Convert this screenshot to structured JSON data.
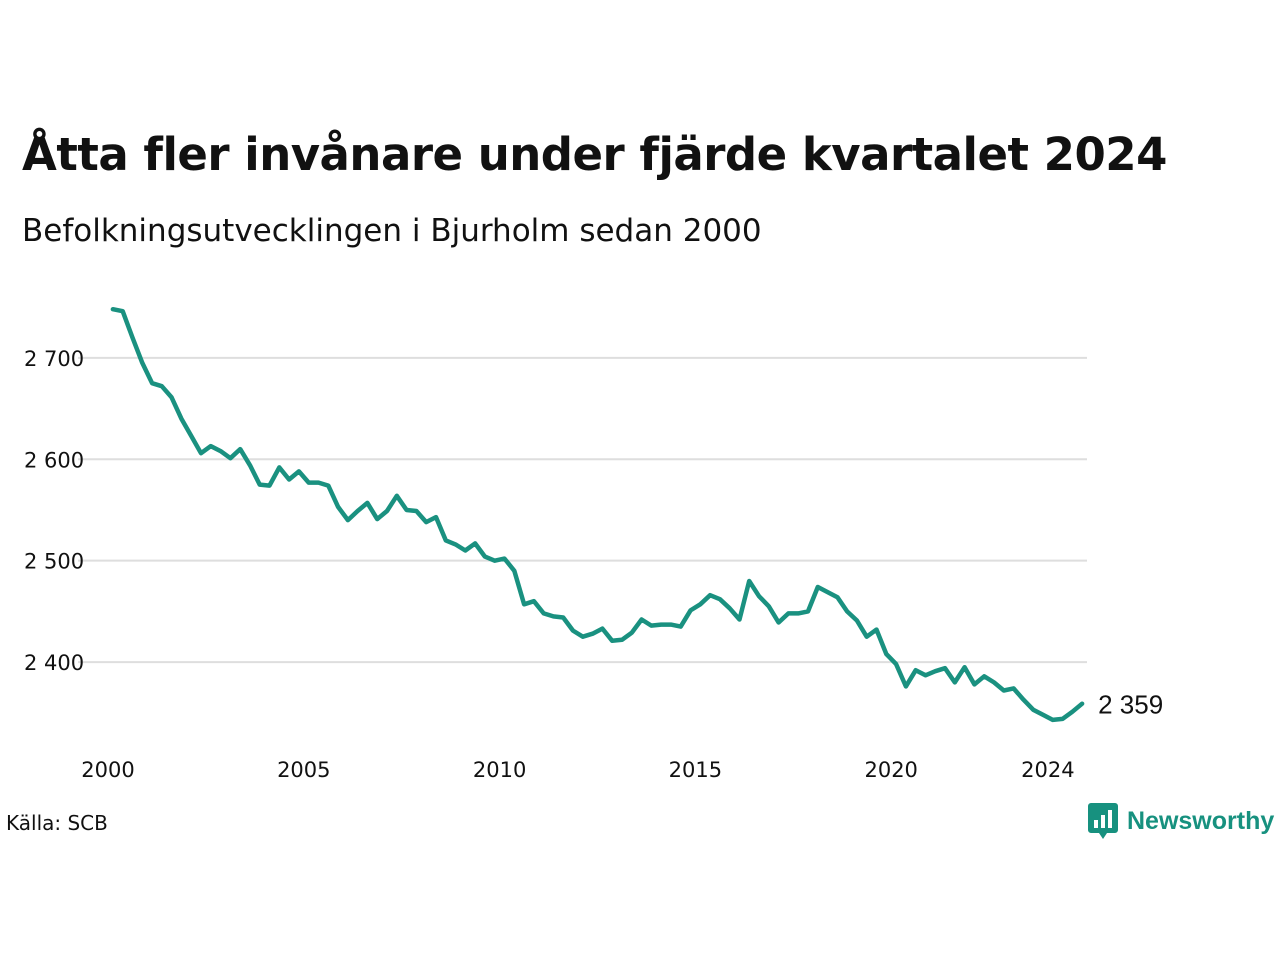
{
  "title": "Åtta fler invånare under fjärde kvartalet 2024",
  "subtitle": "Befolkningsutvecklingen i Bjurholm sedan 2000",
  "source": "Källa: SCB",
  "brand": {
    "name": "Newsworthy",
    "color": "#17917f",
    "icon": "newsworthy-logo-icon"
  },
  "chart_data": {
    "type": "line",
    "title": "Åtta fler invånare under fjärde kvartalet 2024",
    "subtitle": "Befolkningsutvecklingen i Bjurholm sedan 2000",
    "xlabel": "",
    "ylabel": "",
    "grid": true,
    "line_color": "#1a9180",
    "x_ticks": [
      2000,
      2005,
      2010,
      2015,
      2020,
      2024
    ],
    "x_tick_labels": [
      "2000",
      "2005",
      "2010",
      "2015",
      "2020",
      "2024"
    ],
    "y_ticks": [
      2400,
      2500,
      2600,
      2700
    ],
    "y_tick_labels": [
      "2 400",
      "2 500",
      "2 600",
      "2 700"
    ],
    "xlim": [
      2000,
      2025
    ],
    "ylim": [
      2335,
      2760
    ],
    "end_label": "2 359",
    "series": [
      {
        "values": [
          2748,
          2746,
          2720,
          2695,
          2675,
          2672,
          2661,
          2640,
          2623,
          2606,
          2613,
          2608,
          2601,
          2610,
          2594,
          2575,
          2574,
          2592,
          2580,
          2588,
          2577,
          2577,
          2574,
          2553,
          2540,
          2549,
          2557,
          2541,
          2549,
          2564,
          2550,
          2549,
          2538,
          2543,
          2520,
          2516,
          2510,
          2517,
          2504,
          2500,
          2502,
          2490,
          2457,
          2460,
          2448,
          2445,
          2444,
          2431,
          2425,
          2428,
          2433,
          2421,
          2422,
          2429,
          2442,
          2436,
          2437,
          2437,
          2435,
          2451,
          2457,
          2466,
          2462,
          2453,
          2442,
          2480,
          2465,
          2455,
          2439,
          2448,
          2448,
          2450,
          2474,
          2469,
          2464,
          2450,
          2441,
          2425,
          2432,
          2408,
          2398,
          2376,
          2392,
          2387,
          2391,
          2394,
          2380,
          2395,
          2378,
          2386,
          2380,
          2372,
          2374,
          2363,
          2353,
          2348,
          2343,
          2344,
          2351,
          2359
        ]
      }
    ]
  }
}
